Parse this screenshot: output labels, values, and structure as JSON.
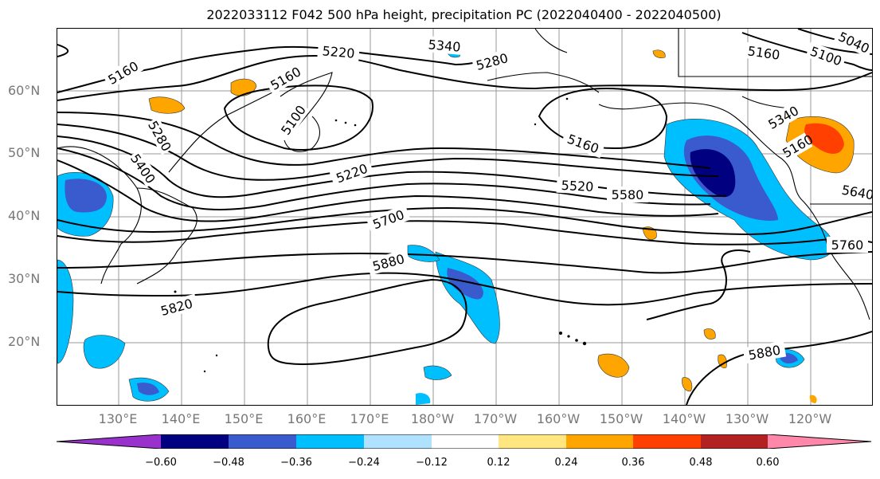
{
  "title": "2022033112 F042 500 hPa height, precipitation PC (2022040400 - 2022040500)",
  "lat_labels": [
    "60°N",
    "50°N",
    "40°N",
    "30°N",
    "20°N"
  ],
  "lon_labels": [
    "130°E",
    "140°E",
    "150°E",
    "160°E",
    "170°E",
    "180°W",
    "170°W",
    "160°W",
    "150°W",
    "140°W",
    "130°W",
    "120°W"
  ],
  "contour_labels": [
    "5160",
    "5220",
    "5340",
    "5280",
    "5160",
    "5100",
    "5160",
    "5100",
    "5040",
    "5160",
    "5280",
    "5400",
    "5220",
    "5520",
    "5580",
    "5340",
    "5160",
    "5640",
    "5700",
    "5880",
    "5760",
    "5820",
    "5880"
  ],
  "colorbar": {
    "ticks": [
      "−0.60",
      "−0.48",
      "−0.36",
      "−0.24",
      "−0.12",
      "0.12",
      "0.24",
      "0.36",
      "0.48",
      "0.60"
    ],
    "colors": [
      "#9932cc",
      "#000080",
      "#3a5bcd",
      "#00bfff",
      "#b0e2ff",
      "#ffffff",
      "#ffe680",
      "#ffa500",
      "#ff4000",
      "#b22222",
      "#ff88aa"
    ]
  }
}
